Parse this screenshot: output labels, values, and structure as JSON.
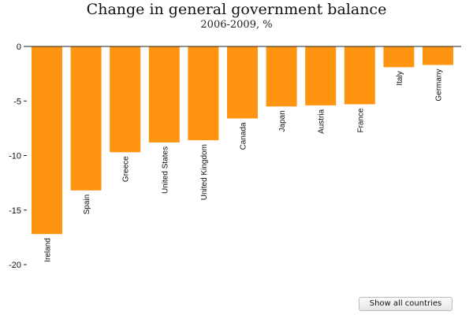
{
  "chart_data": {
    "type": "bar",
    "title": "Change in general government balance",
    "subtitle": "2006-2009, %",
    "categories": [
      "Ireland",
      "Spain",
      "Greece",
      "United States",
      "United Kingdom",
      "Canada",
      "Japan",
      "Austria",
      "France",
      "Italy",
      "Germany"
    ],
    "values": [
      -17.2,
      -13.2,
      -9.7,
      -8.8,
      -8.6,
      -6.6,
      -5.5,
      -5.4,
      -5.3,
      -1.9,
      -1.7
    ],
    "ylim": [
      -20,
      0
    ],
    "yticks": [
      "0",
      "-5",
      "-10",
      "-15",
      "-20"
    ],
    "ytick_values": [
      0,
      -5,
      -10,
      -15,
      -20
    ],
    "bar_color": "#ff9410",
    "grid": false,
    "legend": "none"
  },
  "controls": {
    "show_all_label": "Show all countries"
  }
}
